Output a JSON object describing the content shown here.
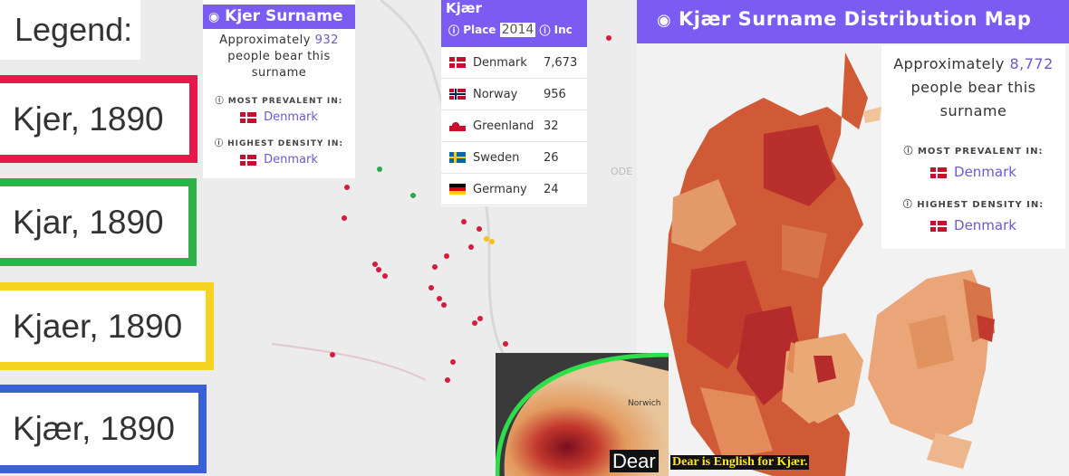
{
  "legend": {
    "title": "Legend:",
    "items": [
      "Kjer, 1890",
      "Kjar, 1890",
      "Kjaer, 1890",
      "Kjær, 1890"
    ]
  },
  "kjer_card": {
    "title": "Kjer Surname",
    "approx": "Approximately",
    "count": "932",
    "people": "people bear this",
    "surname": "surname",
    "most_prevalent_label": "MOST PREVALENT IN:",
    "most_prevalent": "Denmark",
    "highest_density_label": "HIGHEST DENSITY IN:",
    "highest_density": "Denmark"
  },
  "kjaer_table": {
    "title": "Kjær",
    "headers": [
      "Place",
      "2014",
      "Inc"
    ],
    "rows": [
      [
        "Denmark",
        "7,673"
      ],
      [
        "Norway",
        "956"
      ],
      [
        "Greenland",
        "32"
      ],
      [
        "Sweden",
        "26"
      ],
      [
        "Germany",
        "24"
      ]
    ]
  },
  "map": {
    "labels": [
      "ODE"
    ]
  },
  "kjaer_map": {
    "title": "Kjær Surname Distribution Map",
    "approx": "Approximately",
    "count": "8,772",
    "people": "people bear this",
    "surname": "surname",
    "most_prevalent_label": "MOST PREVALENT IN:",
    "most_prevalent": "Denmark",
    "highest_density_label": "HIGHEST DENSITY IN:",
    "highest_density": "Denmark"
  },
  "inset": {
    "place": "Norwich",
    "word": "Dear",
    "caption": "Dear is English for Kjær."
  }
}
